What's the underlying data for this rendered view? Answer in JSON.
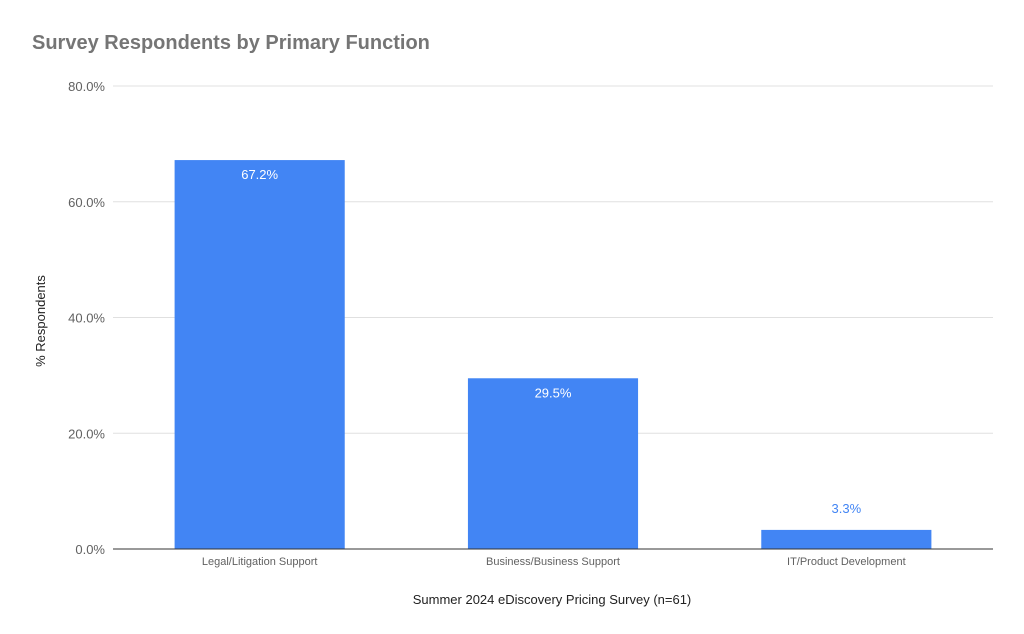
{
  "chart_data": {
    "type": "bar",
    "title": "Survey Respondents by Primary Function",
    "xlabel": "Summer 2024 eDiscovery Pricing Survey (n=61)",
    "ylabel": "% Respondents",
    "categories": [
      "Legal/Litigation Support",
      "Business/Business Support",
      "IT/Product Development"
    ],
    "values": [
      67.2,
      29.5,
      3.3
    ],
    "data_labels": [
      "67.2%",
      "29.5%",
      "3.3%"
    ],
    "ylim": [
      0,
      80
    ],
    "yticks": [
      0,
      20,
      40,
      60,
      80
    ],
    "ytick_labels": [
      "0.0%",
      "20.0%",
      "40.0%",
      "60.0%",
      "80.0%"
    ],
    "grid": true,
    "legend": "none",
    "colors": {
      "bar": "#4285f4",
      "label_inside": "#ffffff",
      "label_outside": "#4285f4",
      "grid": "#e0e0e0",
      "axis": "#333333"
    }
  }
}
